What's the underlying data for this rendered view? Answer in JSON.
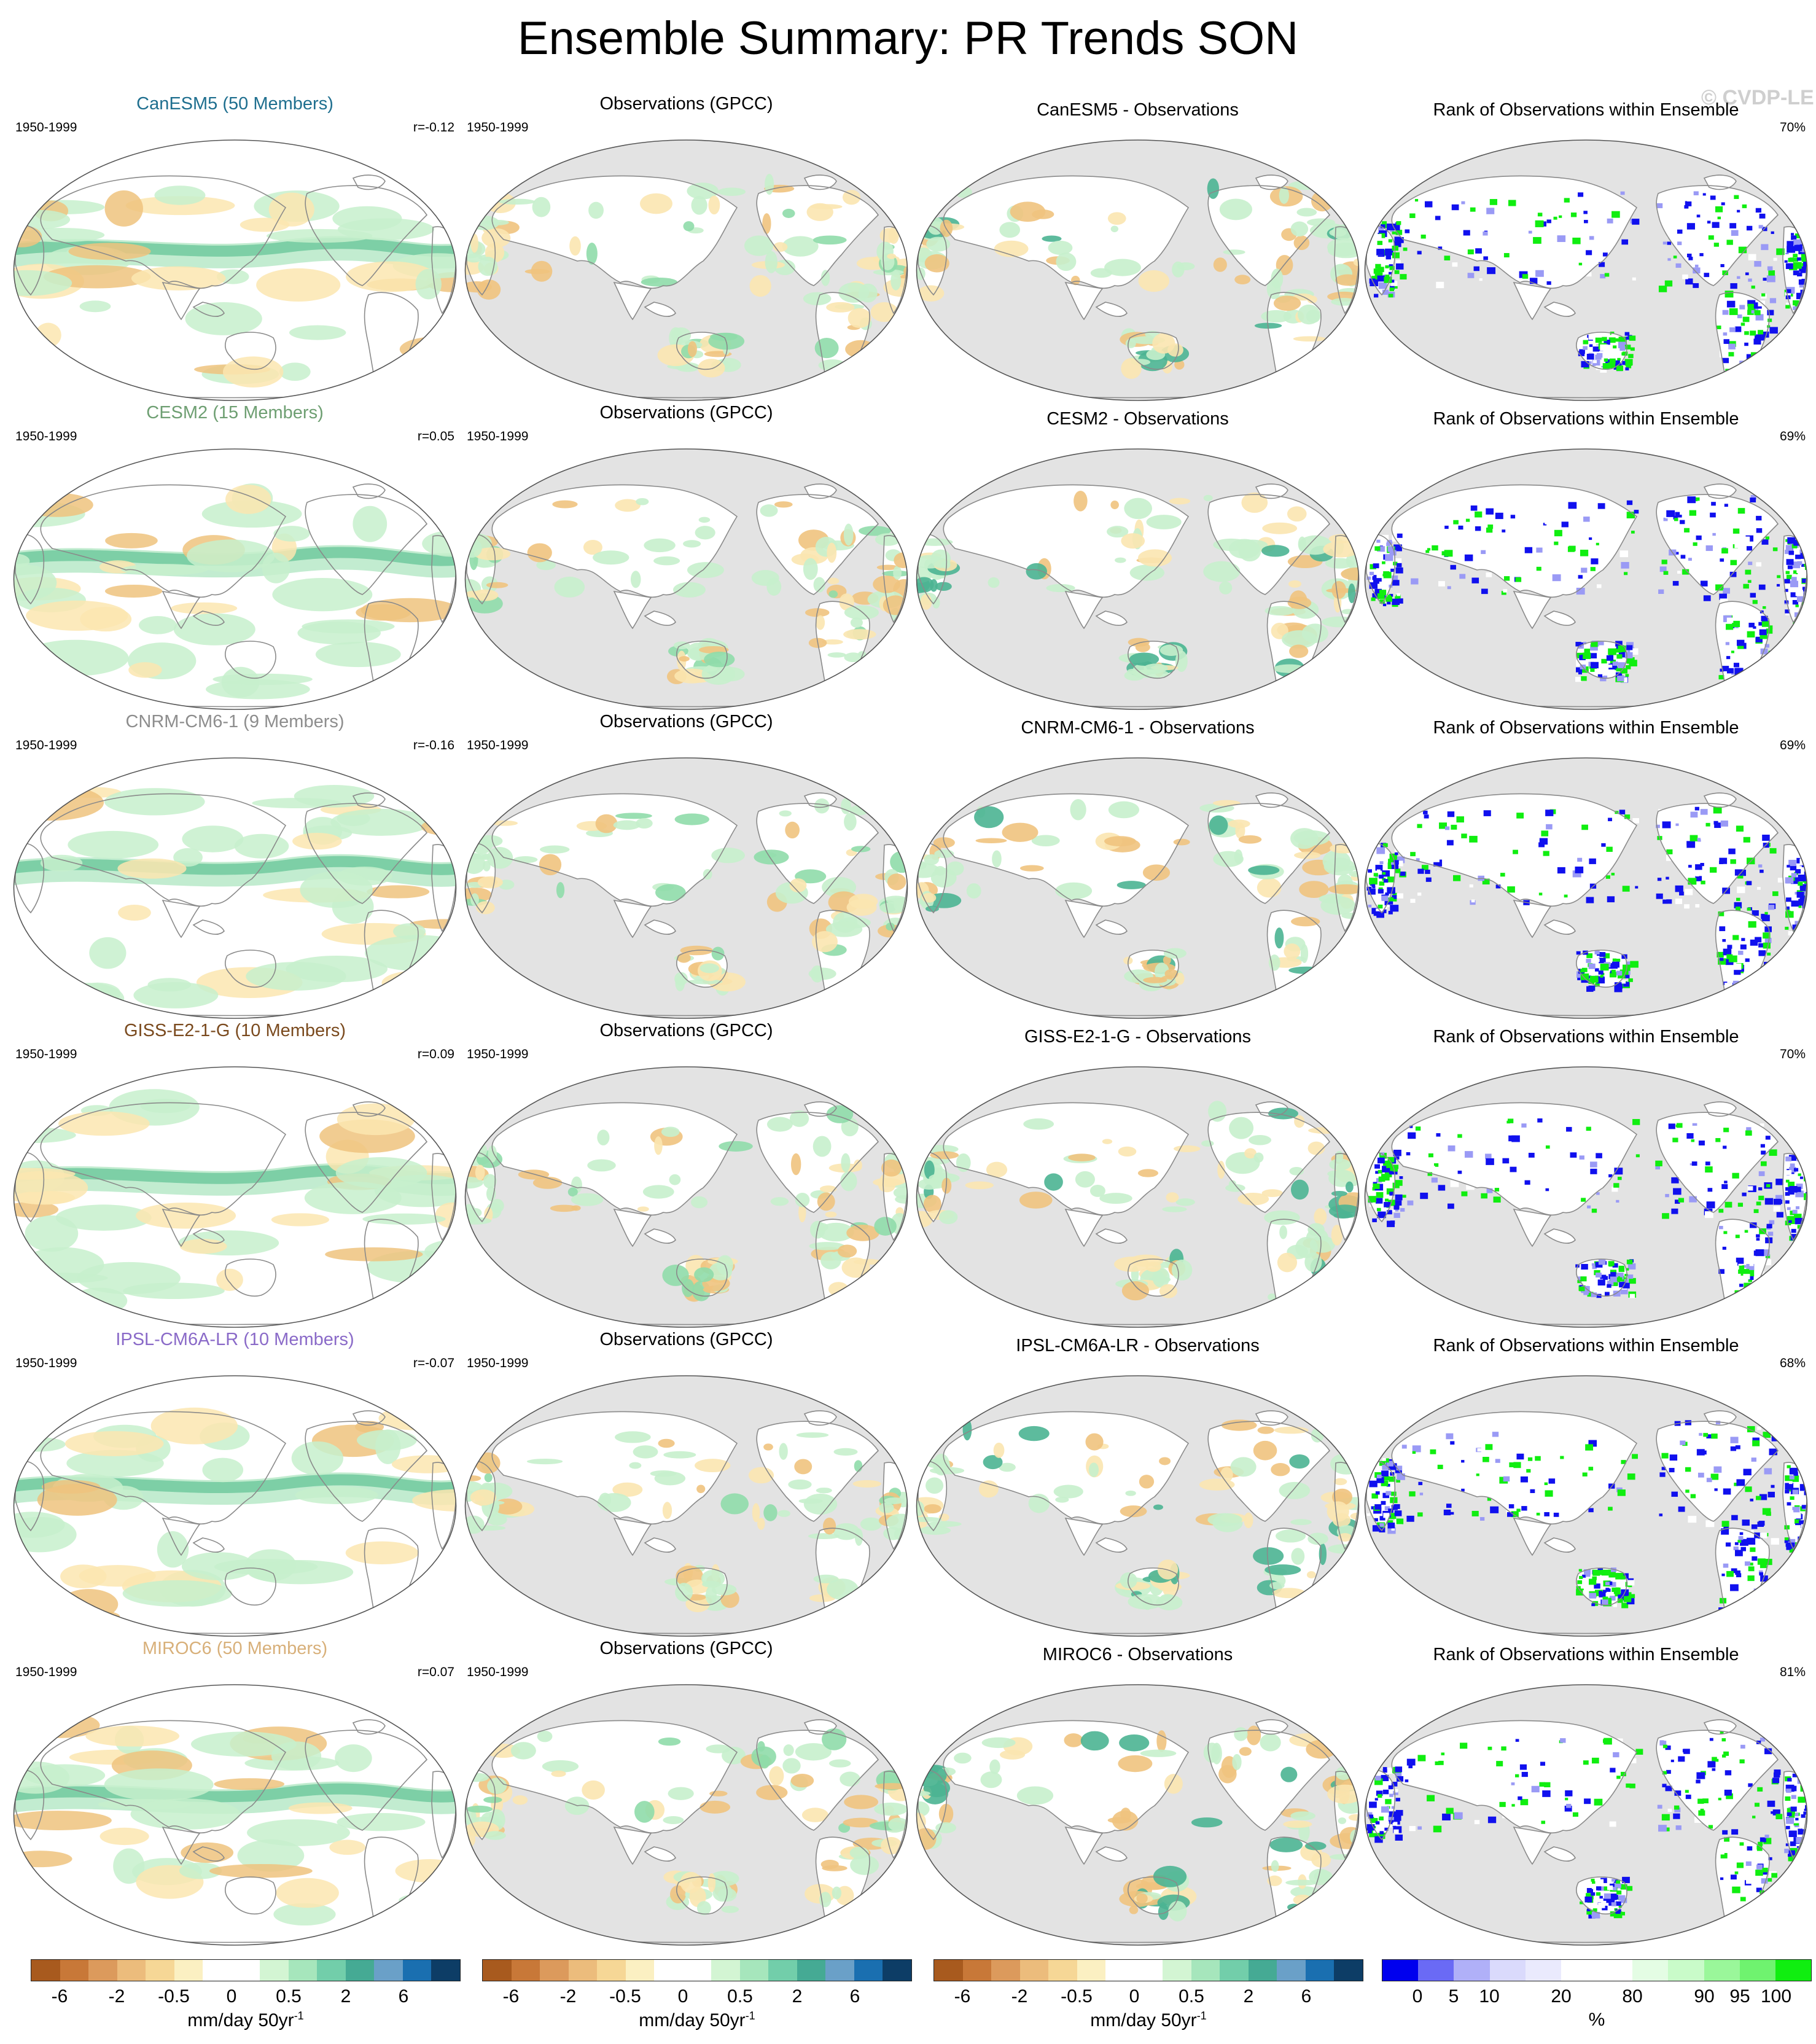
{
  "title": "Ensemble Summary: PR Trends SON",
  "watermark": "© CVDP-LE",
  "period": "1950-1999",
  "obs_title": "Observations (GPCC)",
  "rank_title": "Rank of Observations within Ensemble",
  "colors": {
    "land_gray": "#e3e3e3",
    "coast": "#8a8a8a",
    "brown": "#b5651d",
    "tan": "#efc37e",
    "pale_tan": "#fbe6b0",
    "pale_green": "#c7f0cc",
    "green": "#8fdcaa",
    "teal": "#4bb492",
    "blue_rank": "#1010ee",
    "green_rank": "#10ee10"
  },
  "rows": [
    {
      "model": "CanESM5 (50 Members)",
      "model_color": "#1f6f8f",
      "r": "r=-0.12",
      "diff": "CanESM5 - Observations",
      "rank_pct": "70%"
    },
    {
      "model": "CESM2 (15 Members)",
      "model_color": "#6e9f72",
      "r": "r=0.05",
      "diff": "CESM2 - Observations",
      "rank_pct": "69%"
    },
    {
      "model": "CNRM-CM6-1 (9 Members)",
      "model_color": "#8d8d8d",
      "r": "r=-0.16",
      "diff": "CNRM-CM6-1 - Observations",
      "rank_pct": "69%"
    },
    {
      "model": "GISS-E2-1-G (10 Members)",
      "model_color": "#7a4a1e",
      "r": "r=0.09",
      "diff": "GISS-E2-1-G - Observations",
      "rank_pct": "70%"
    },
    {
      "model": "IPSL-CM6A-LR (10 Members)",
      "model_color": "#8a6ac8",
      "r": "r=-0.07",
      "diff": "IPSL-CM6A-LR - Observations",
      "rank_pct": "68%"
    },
    {
      "model": "MIROC6 (50 Members)",
      "model_color": "#d8b07a",
      "r": "r=0.07",
      "diff": "MIROC6 - Observations",
      "rank_pct": "81%"
    }
  ],
  "colorbar_trend": {
    "colors": [
      "#a85a1e",
      "#c87838",
      "#dc9a5c",
      "#ecbc7c",
      "#f6d796",
      "#fbf0c2",
      "#ffffff",
      "#ffffff",
      "#d3f5d3",
      "#a6e6bc",
      "#72ceaa",
      "#45aa94",
      "#6aa0c8",
      "#1a6fb0",
      "#0d3d66"
    ],
    "ticks": [
      "-6",
      "-2",
      "-0.5",
      "0",
      "0.5",
      "2",
      "6"
    ],
    "label": "mm/day 50yr",
    "label_sup": "-1"
  },
  "colorbar_rank": {
    "colors": [
      "#0000ee",
      "#6a6af5",
      "#b0b0f8",
      "#dadafc",
      "#eaeafd",
      "#ffffff",
      "#ffffff",
      "#e4fde4",
      "#c9fbc9",
      "#9af79a",
      "#6ff36f",
      "#10ee10"
    ],
    "ticks": [
      "0",
      "5",
      "10",
      "20",
      "80",
      "90",
      "95",
      "100"
    ],
    "label": "%"
  }
}
